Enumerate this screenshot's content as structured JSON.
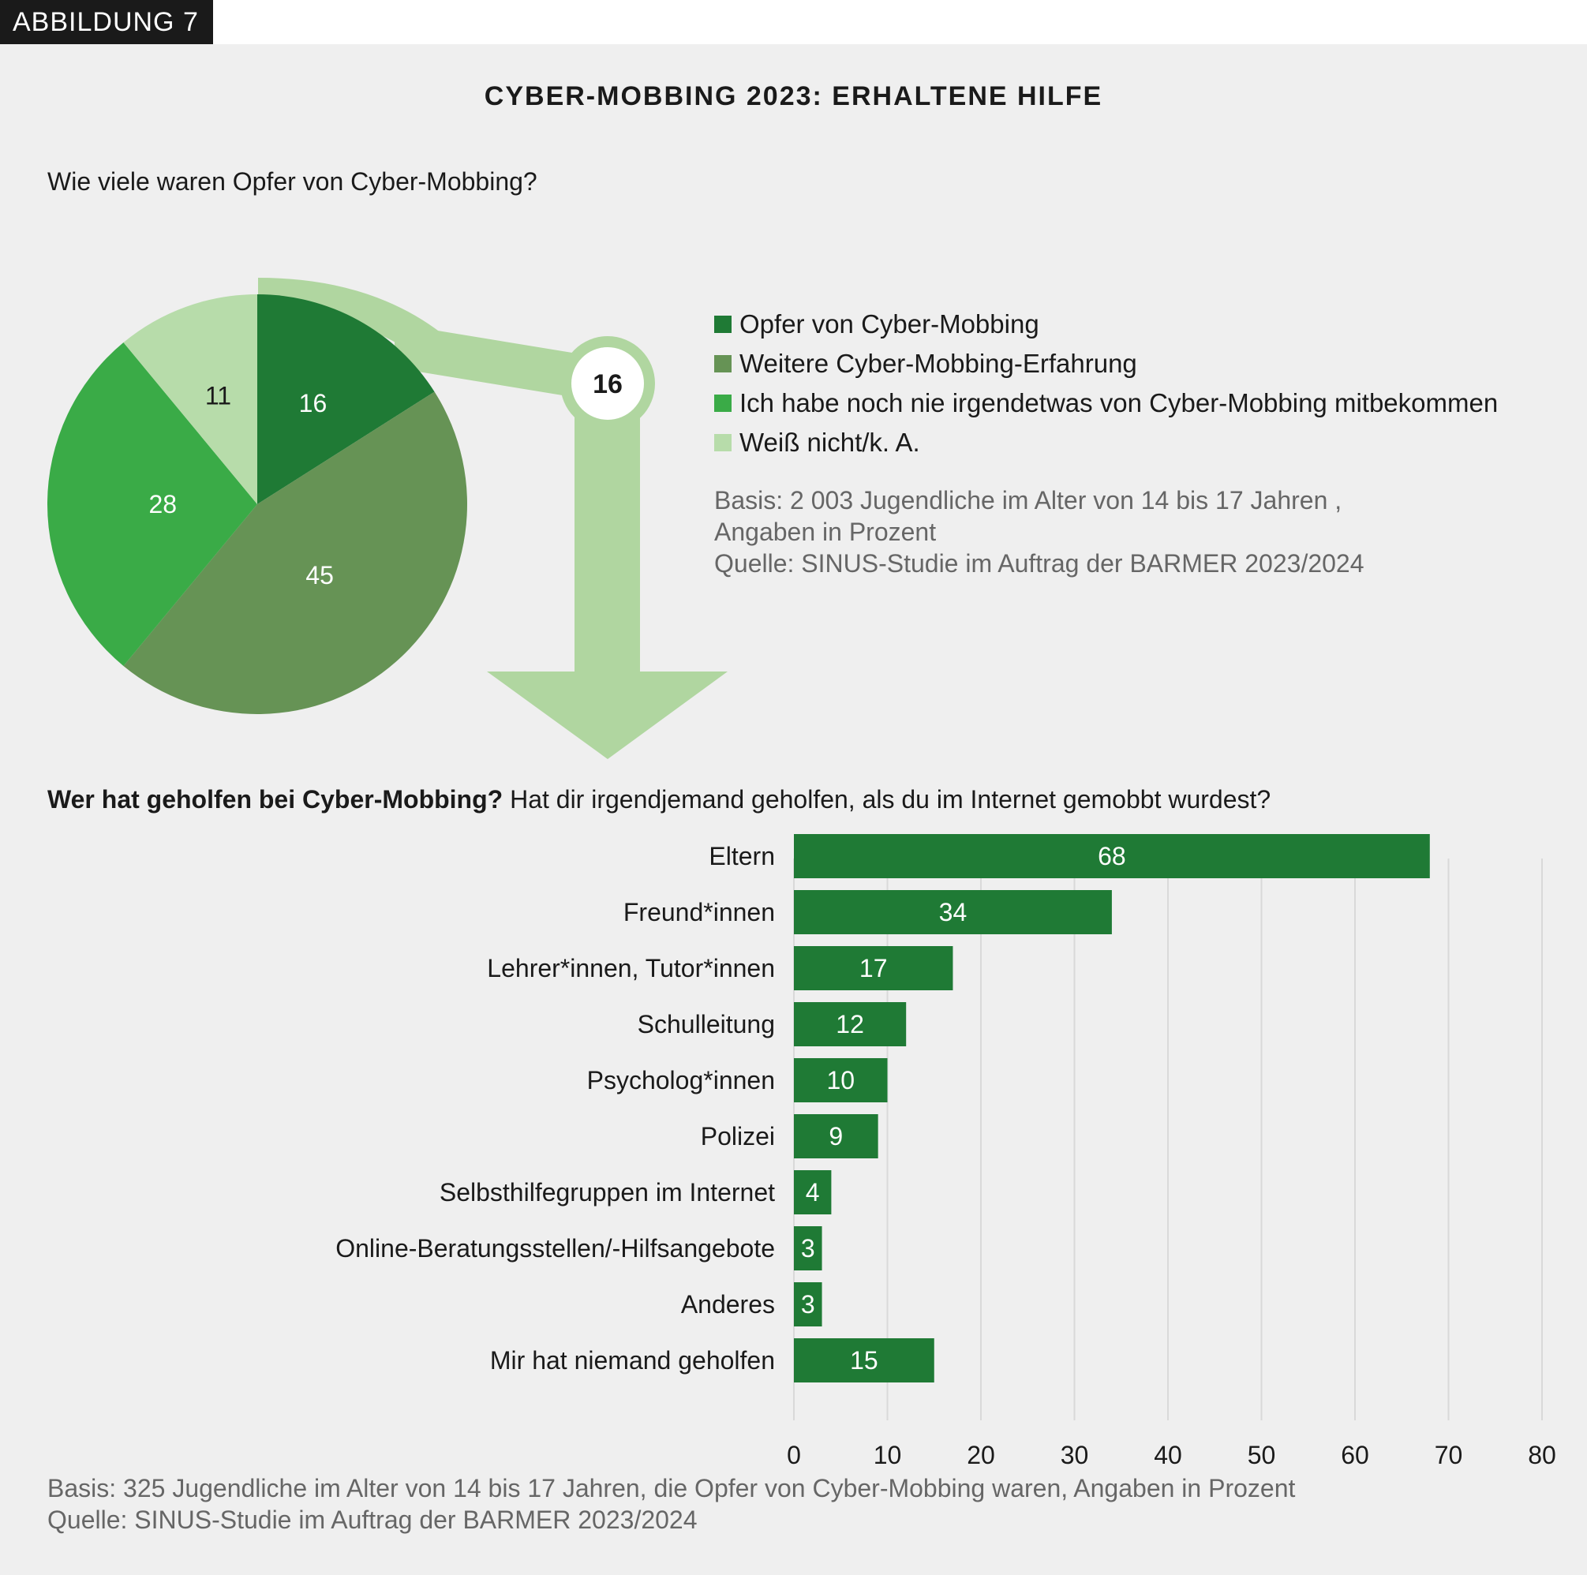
{
  "badge": "ABBILDUNG 7",
  "title": "CYBER-MOBBING 2023: ERHALTENE HILFE",
  "pie_section": {
    "question": "Wie viele waren Opfer von Cyber-Mobbing?",
    "callout_value": "16",
    "basis_line1": "Basis: 2 003 Jugendliche im Alter von 14 bis 17 Jahren ,",
    "basis_line2": "Angaben in Prozent",
    "source": "Quelle: SINUS-Studie im Auftrag der BARMER 2023/2024"
  },
  "bar_section": {
    "question_bold": "Wer hat geholfen bei Cyber-Mobbing?",
    "question_rest": " Hat dir irgendjemand geholfen, als du im Internet gemobbt wurdest?",
    "basis": "Basis: 325 Jugendliche im Alter von 14 bis 17 Jahren, die Opfer von Cyber-Mobbing waren, Angaben in Prozent",
    "source": "Quelle: SINUS-Studie im Auftrag der BARMER 2023/2024"
  },
  "colors": {
    "dark_green": "#1f7a35",
    "mid_green": "#669355",
    "bright_green": "#3aab47",
    "light_green": "#b7dcaa",
    "arrow_green": "#b0d6a0"
  },
  "chart_data": [
    {
      "type": "pie",
      "title": "Wie viele waren Opfer von Cyber-Mobbing?",
      "slices": [
        {
          "label": "Opfer von Cyber-Mobbing",
          "value": 16,
          "color": "#1f7a35"
        },
        {
          "label": "Weitere Cyber-Mobbing-Erfahrung",
          "value": 45,
          "color": "#669355"
        },
        {
          "label": "Ich habe noch nie irgendetwas von Cyber-Mobbing mitbekommen",
          "value": 28,
          "color": "#3aab47"
        },
        {
          "label": "Weiß nicht/k. A.",
          "value": 11,
          "color": "#b7dcaa"
        }
      ]
    },
    {
      "type": "bar",
      "orientation": "horizontal",
      "title": "Wer hat geholfen bei Cyber-Mobbing?",
      "categories": [
        "Eltern",
        "Freund*innen",
        "Lehrer*innen, Tutor*innen",
        "Schulleitung",
        "Psycholog*innen",
        "Polizei",
        "Selbsthilfegruppen im Internet",
        "Online-Beratungsstellen/-Hilfsangebote",
        "Anderes",
        "Mir hat niemand geholfen"
      ],
      "values": [
        68,
        34,
        17,
        12,
        10,
        9,
        4,
        3,
        3,
        15
      ],
      "xlim": [
        0,
        80
      ],
      "xticks": [
        0,
        10,
        20,
        30,
        40,
        50,
        60,
        70,
        80
      ],
      "color": "#1f7a35"
    }
  ]
}
